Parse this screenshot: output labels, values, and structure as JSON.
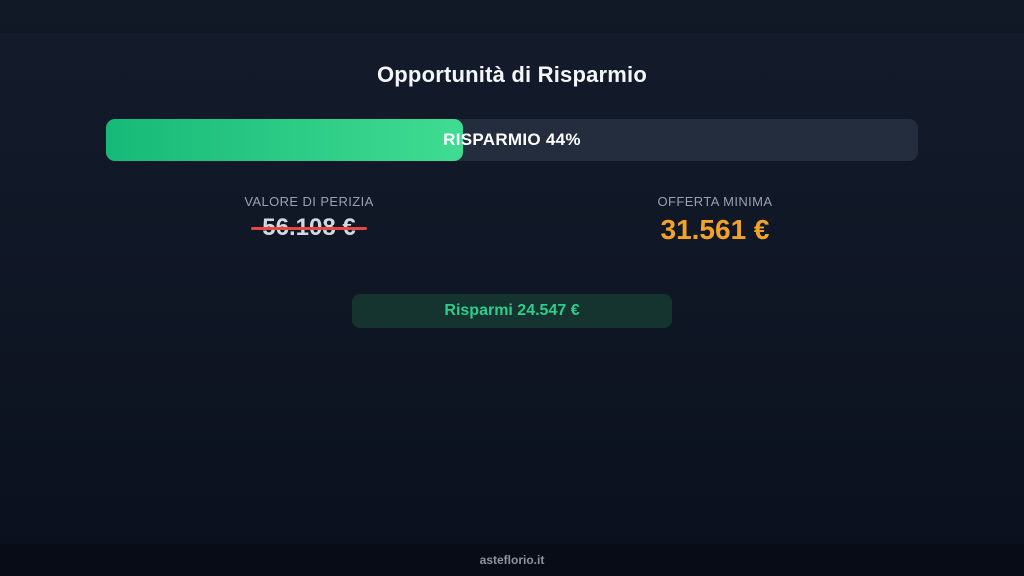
{
  "page": {
    "title": "Opportunità di Risparmio"
  },
  "progress": {
    "label": "RISPARMIO 44%",
    "percent": 44
  },
  "values": {
    "appraisal": {
      "label": "VALORE DI PERIZIA",
      "value": "56.108 €",
      "strikethrough": true
    },
    "offer": {
      "label": "OFFERTA MINIMA",
      "value": "31.561 €"
    }
  },
  "savings_badge": {
    "text": "Risparmi 24.547 €"
  },
  "footer": {
    "site": "asteflorio.it"
  },
  "colors": {
    "background_top": "#141c2c",
    "background_bottom": "#0a101d",
    "progress_track": "#242d3d",
    "progress_fill_start": "#17b978",
    "progress_fill_end": "#3fdc92",
    "label_gray": "#98a1b1",
    "appraisal_value": "#d3d8e0",
    "strike_red": "#e5483f",
    "offer_orange": "#f2a227",
    "badge_background": "#15342f",
    "badge_text": "#2ecd8d",
    "footer_background": "#070c16",
    "footer_text": "#8c94a4",
    "title_white": "#f4f6f9"
  }
}
